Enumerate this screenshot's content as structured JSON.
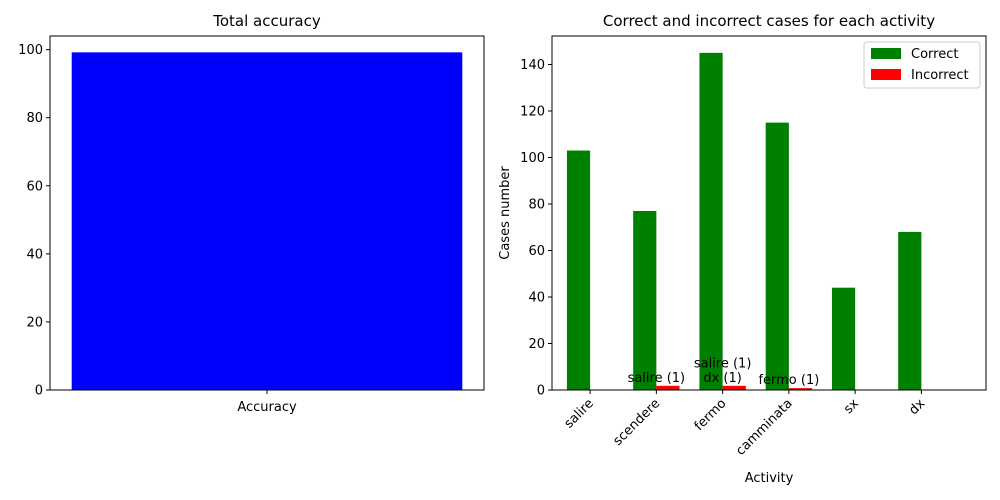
{
  "chart_data": [
    {
      "type": "bar",
      "title": "Total accuracy",
      "categories": [
        "Accuracy"
      ],
      "values": [
        99.2
      ],
      "xlabel": "",
      "ylabel": "",
      "ylim": [
        0,
        104
      ],
      "yticks": [
        "0",
        "20",
        "40",
        "60",
        "80",
        "100"
      ],
      "bar_color": "#0000ff",
      "grid": false
    },
    {
      "type": "bar",
      "title": "Correct and incorrect cases for each activity",
      "categories": [
        "salire",
        "scendere",
        "fermo",
        "camminata",
        "sx",
        "dx"
      ],
      "series": [
        {
          "name": "Correct",
          "color": "#008000",
          "values": [
            103,
            77,
            145,
            115,
            44,
            68
          ]
        },
        {
          "name": "Incorrect",
          "color": "#ff0000",
          "values": [
            0,
            1.8,
            1.8,
            0.8,
            0,
            0
          ]
        }
      ],
      "annotations": [
        {
          "category": "scendere",
          "lines": [
            "salire (1)"
          ]
        },
        {
          "category": "fermo",
          "lines": [
            "salire (1)",
            "dx (1)"
          ]
        },
        {
          "category": "camminata",
          "lines": [
            "fermo (1)"
          ]
        }
      ],
      "xlabel": "Activity",
      "ylabel": "Cases number",
      "ylim": [
        0,
        152.25
      ],
      "yticks": [
        "0",
        "20",
        "40",
        "60",
        "80",
        "100",
        "120",
        "140"
      ],
      "legend_position": "top-right",
      "grid": false
    }
  ]
}
